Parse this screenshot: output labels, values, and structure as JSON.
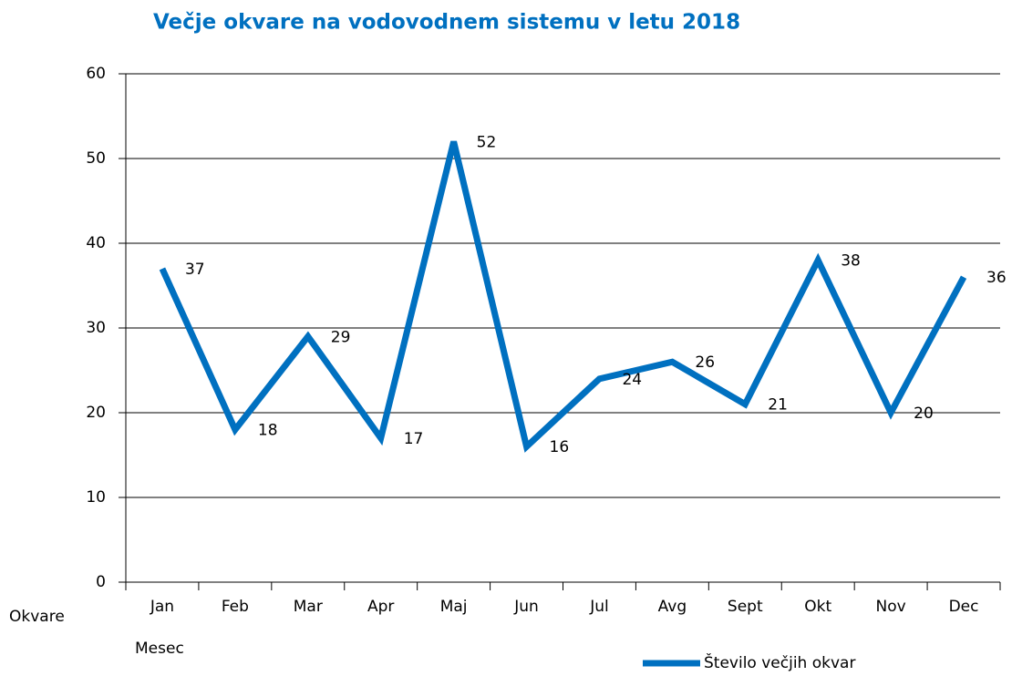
{
  "chart_data": {
    "type": "line",
    "title": "Večje okvare na vodovodnem sistemu v letu 2018",
    "x_label": "Mesec",
    "y_label": "Okvare",
    "categories": [
      "Jan",
      "Feb",
      "Mar",
      "Apr",
      "Maj",
      "Jun",
      "Jul",
      "Avg",
      "Sept",
      "Okt",
      "Nov",
      "Dec"
    ],
    "series": [
      {
        "name": "Število večjih okvar",
        "color": "#0070c0",
        "values": [
          37,
          18,
          29,
          17,
          52,
          16,
          24,
          26,
          21,
          38,
          20,
          36
        ]
      }
    ],
    "ylim": [
      0,
      60
    ],
    "yticks": [
      0,
      10,
      20,
      30,
      40,
      50,
      60
    ],
    "grid": true,
    "legend": "bottom"
  }
}
